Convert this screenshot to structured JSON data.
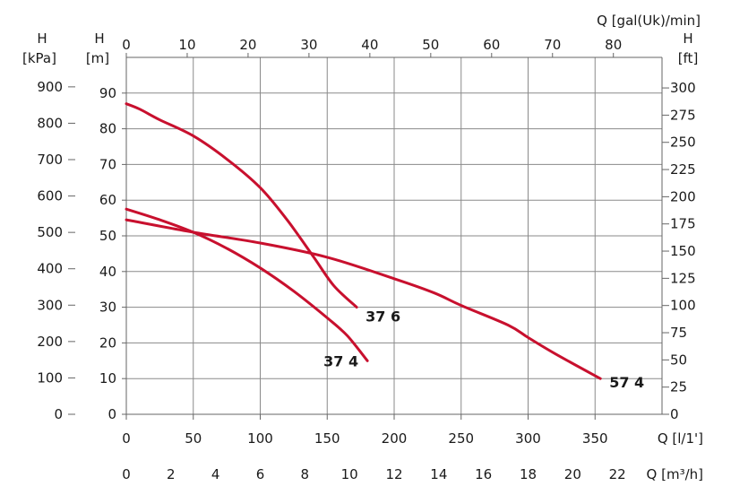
{
  "chart_data": {
    "type": "line",
    "title": "",
    "x_axes": {
      "bottom_primary": {
        "label": "Q [l/1']",
        "range": [
          0,
          350
        ],
        "ticks": [
          "0",
          "50",
          "100",
          "150",
          "200",
          "250",
          "300",
          "350"
        ]
      },
      "bottom_secondary": {
        "label": "Q [m³/h]",
        "ticks": [
          "0",
          "2",
          "4",
          "6",
          "8",
          "10",
          "12",
          "14",
          "16",
          "18",
          "20",
          "22"
        ]
      },
      "top": {
        "label": "Q [gal(Uk)/min]",
        "ticks": [
          "0",
          "10",
          "20",
          "30",
          "40",
          "50",
          "60",
          "70",
          "80"
        ]
      }
    },
    "y_axes": {
      "left_kpa": {
        "label_h": "H",
        "label_unit": "[kPa]",
        "ticks": [
          "0",
          "100",
          "200",
          "300",
          "400",
          "500",
          "600",
          "700",
          "800",
          "900"
        ]
      },
      "left_m": {
        "label_h": "H",
        "label_unit": "[m]",
        "range": [
          0,
          100
        ],
        "ticks": [
          "0",
          "10",
          "20",
          "30",
          "40",
          "50",
          "60",
          "70",
          "80",
          "90"
        ]
      },
      "right_ft": {
        "label_h": "H",
        "label_unit": "[ft]",
        "ticks": [
          "0",
          "25",
          "50",
          "75",
          "100",
          "125",
          "150",
          "175",
          "200",
          "225",
          "250",
          "275",
          "300"
        ]
      }
    },
    "grid": true,
    "series": [
      {
        "name": "37 6",
        "color": "#c8102e",
        "x": [
          0,
          10,
          25,
          50,
          75,
          100,
          120,
          140,
          155,
          172
        ],
        "y": [
          87,
          85.5,
          82.5,
          78,
          71.5,
          63.5,
          54.5,
          44,
          36,
          30
        ]
      },
      {
        "name": "37 4",
        "color": "#c8102e",
        "x": [
          0,
          25,
          50,
          75,
          100,
          125,
          150,
          165,
          180
        ],
        "y": [
          57.5,
          54.5,
          51,
          46.5,
          41,
          34.5,
          27,
          22,
          15
        ]
      },
      {
        "name": "57 4",
        "color": "#c8102e",
        "x": [
          0,
          50,
          100,
          150,
          200,
          230,
          250,
          285,
          300,
          320,
          354
        ],
        "y": [
          54.5,
          51,
          48,
          44,
          38,
          34,
          30.5,
          25,
          21.5,
          17,
          10
        ]
      }
    ]
  }
}
